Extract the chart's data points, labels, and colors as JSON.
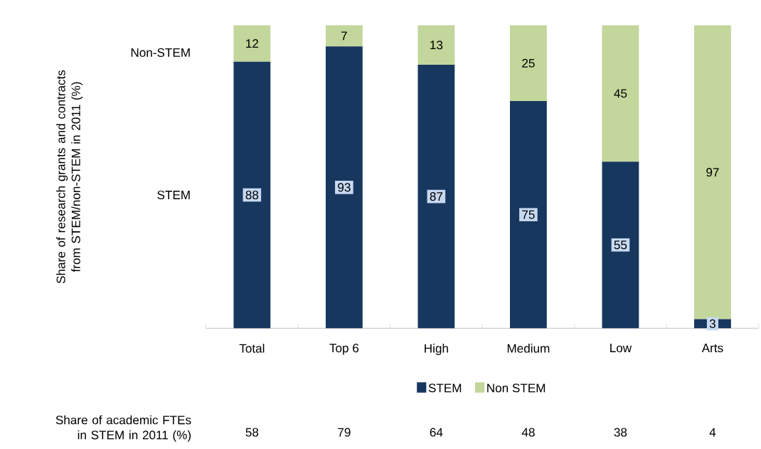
{
  "chart_data": {
    "type": "bar",
    "stacked": true,
    "categories": [
      "Total",
      "Top 6",
      "High",
      "Medium",
      "Low",
      "Arts"
    ],
    "series": [
      {
        "name": "STEM",
        "color": "#17375e",
        "values": [
          88,
          93,
          87,
          75,
          55,
          3
        ]
      },
      {
        "name": "Non STEM",
        "color": "#c3d69b",
        "values": [
          12,
          7,
          13,
          25,
          45,
          97
        ]
      }
    ],
    "data_labels": true,
    "legend": "bottom",
    "annotations": [
      "Share of research  grants and contracts from STEM/non-STEM in 2011 (%)",
      "Non-STEM",
      "STEM",
      "Share of academic FTEs in STEM in 2011 (%)",
      "58",
      "79",
      "64",
      "48",
      "38",
      "4"
    ]
  }
}
